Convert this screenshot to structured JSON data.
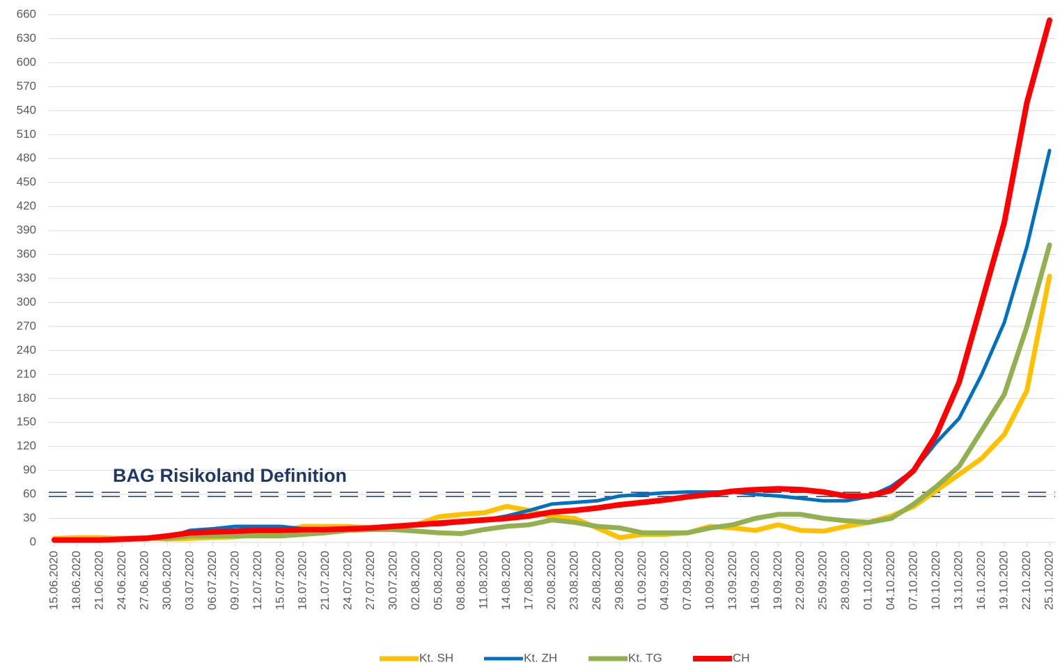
{
  "chart_data": {
    "type": "line",
    "categories": [
      "15.06.2020",
      "18.06.2020",
      "21.06.2020",
      "24.06.2020",
      "27.06.2020",
      "30.06.2020",
      "03.07.2020",
      "06.07.2020",
      "09.07.2020",
      "12.07.2020",
      "15.07.2020",
      "18.07.2020",
      "21.07.2020",
      "24.07.2020",
      "27.07.2020",
      "30.07.2020",
      "02.08.2020",
      "05.08.2020",
      "08.08.2020",
      "11.08.2020",
      "14.08.2020",
      "17.08.2020",
      "20.08.2020",
      "23.08.2020",
      "26.08.2020",
      "29.08.2020",
      "01.09.2020",
      "04.09.2020",
      "07.09.2020",
      "10.09.2020",
      "13.09.2020",
      "16.09.2020",
      "19.09.2020",
      "22.09.2020",
      "25.09.2020",
      "28.09.2020",
      "01.10.2020",
      "04.10.2020",
      "07.10.2020",
      "10.10.2020",
      "13.10.2020",
      "16.10.2020",
      "19.10.2020",
      "22.10.2020",
      "25.10.2020"
    ],
    "series": [
      {
        "name": "Kt. SH",
        "color": "#ffc000",
        "values": [
          5,
          6,
          6,
          5,
          6,
          4,
          5,
          6,
          7,
          10,
          14,
          20,
          20,
          20,
          18,
          20,
          22,
          32,
          35,
          37,
          45,
          40,
          32,
          30,
          18,
          6,
          10,
          10,
          12,
          20,
          18,
          15,
          22,
          15,
          14,
          20,
          25,
          33,
          45,
          65,
          85,
          105,
          135,
          190,
          333
        ]
      },
      {
        "name": "Kt. ZH",
        "color": "#0070c0",
        "values": [
          3,
          3,
          3,
          4,
          5,
          6,
          15,
          17,
          20,
          20,
          20,
          17,
          17,
          17,
          17,
          20,
          22,
          22,
          25,
          28,
          33,
          40,
          48,
          50,
          52,
          58,
          60,
          62,
          63,
          63,
          63,
          60,
          58,
          55,
          52,
          52,
          57,
          70,
          90,
          125,
          155,
          210,
          275,
          370,
          490
        ]
      },
      {
        "name": "Kt. TG",
        "color": "#92b050",
        "values": [
          3,
          3,
          3,
          4,
          5,
          5,
          8,
          8,
          8,
          8,
          8,
          10,
          12,
          15,
          16,
          16,
          14,
          12,
          11,
          16,
          20,
          22,
          28,
          25,
          20,
          18,
          12,
          12,
          12,
          18,
          22,
          30,
          35,
          35,
          30,
          27,
          25,
          30,
          48,
          70,
          95,
          140,
          185,
          270,
          372
        ]
      },
      {
        "name": "CH",
        "color": "#ff0000",
        "values": [
          3,
          3,
          3,
          4,
          5,
          8,
          12,
          13,
          14,
          15,
          15,
          16,
          16,
          17,
          18,
          20,
          22,
          24,
          26,
          28,
          30,
          33,
          38,
          40,
          43,
          47,
          50,
          53,
          57,
          60,
          64,
          66,
          67,
          66,
          63,
          58,
          58,
          65,
          90,
          135,
          200,
          300,
          400,
          550,
          653
        ]
      }
    ],
    "threshold": {
      "value": 60,
      "label": "BAG Risikoland Definition",
      "color": "#1f3864"
    },
    "ylim": [
      0,
      660
    ],
    "yticks": [
      0,
      30,
      60,
      90,
      120,
      150,
      180,
      210,
      240,
      270,
      300,
      330,
      360,
      390,
      420,
      450,
      480,
      510,
      540,
      570,
      600,
      630,
      660
    ],
    "grid": true,
    "legend": "bottom"
  }
}
